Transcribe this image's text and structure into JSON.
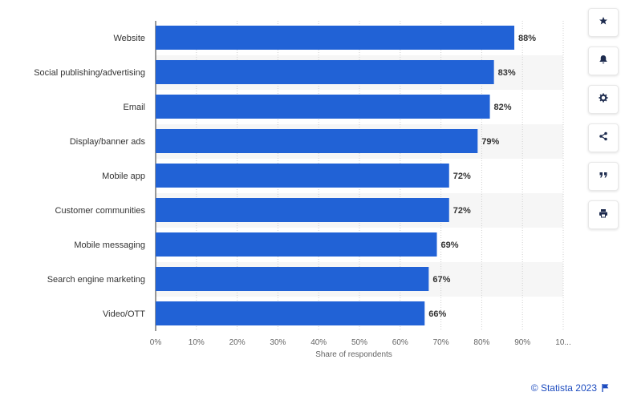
{
  "chart_data": {
    "type": "bar",
    "orientation": "horizontal",
    "categories": [
      "Website",
      "Social publishing/advertising",
      "Email",
      "Display/banner ads",
      "Mobile app",
      "Customer communities",
      "Mobile messaging",
      "Search engine marketing",
      "Video/OTT"
    ],
    "values": [
      88,
      83,
      82,
      79,
      72,
      72,
      69,
      67,
      66
    ],
    "value_labels": [
      "88%",
      "83%",
      "82%",
      "79%",
      "72%",
      "72%",
      "69%",
      "67%",
      "66%"
    ],
    "xlabel": "Share of respondents",
    "xlim": [
      0,
      100
    ],
    "x_ticks": [
      "0%",
      "10%",
      "20%",
      "30%",
      "40%",
      "50%",
      "60%",
      "70%",
      "80%",
      "90%",
      "10..."
    ],
    "grid": "vertical dotted",
    "bar_color": "#2162d6",
    "stripe_color": "#f6f6f6"
  },
  "toolbar": {
    "buttons": [
      "star-icon",
      "bell-icon",
      "gear-icon",
      "share-icon",
      "quote-icon",
      "print-icon"
    ]
  },
  "footer": {
    "credit": "© Statista 2023"
  }
}
